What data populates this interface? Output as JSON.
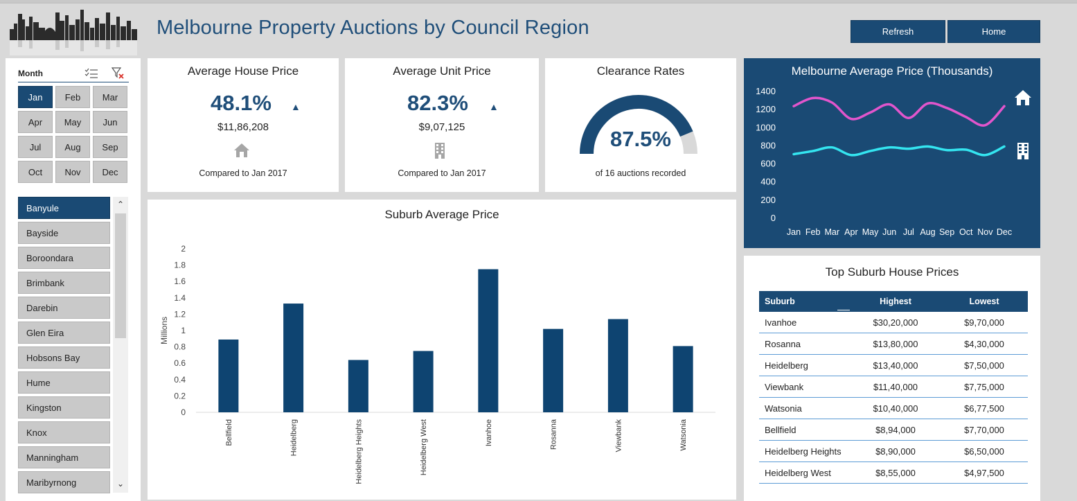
{
  "header": {
    "title": "Melbourne Property Auctions by Council Region",
    "refresh_label": "Refresh",
    "home_label": "Home"
  },
  "month_slicer": {
    "label": "Month",
    "months": [
      "Jan",
      "Feb",
      "Mar",
      "Apr",
      "May",
      "Jun",
      "Jul",
      "Aug",
      "Sep",
      "Oct",
      "Nov",
      "Dec"
    ],
    "selected": "Jan"
  },
  "council_slicer": {
    "items": [
      "Banyule",
      "Bayside",
      "Boroondara",
      "Brimbank",
      "Darebin",
      "Glen Eira",
      "Hobsons Bay",
      "Hume",
      "Kingston",
      "Knox",
      "Manningham",
      "Maribyrnong"
    ],
    "selected": "Banyule"
  },
  "kpi": {
    "house": {
      "title": "Average House Price",
      "pct": "48.1%",
      "arrow": "▲",
      "amount": "$11,86,208",
      "compare": "Compared to Jan 2017",
      "icon": "house-icon"
    },
    "unit": {
      "title": "Average Unit Price",
      "pct": "82.3%",
      "arrow": "▲",
      "amount": "$9,07,125",
      "compare": "Compared to Jan 2017",
      "icon": "building-icon"
    },
    "clearance": {
      "title": "Clearance Rates",
      "pct": "87.5%",
      "rate": 0.875,
      "caption": "of 16 auctions recorded"
    }
  },
  "colors": {
    "navy": "#1a4a74",
    "bar": "#0e4471",
    "house_line": "#e255cc",
    "unit_line": "#34e5f0",
    "gauge_rest": "#d9d9d9",
    "table_rule": "#5b9bd5"
  },
  "chart_data": [
    {
      "type": "bar",
      "title": "Suburb Average Price",
      "ylabel": "Millions",
      "xlabel": "",
      "ylim": [
        0,
        2
      ],
      "yticks": [
        "0",
        "0.2",
        "0.4",
        "0.6",
        "0.8",
        "1",
        "1.2",
        "1.4",
        "1.6",
        "1.8",
        "2"
      ],
      "categories": [
        "Bellfield",
        "Heidelberg",
        "Heidelberg Heights",
        "Heidelberg West",
        "Ivanhoe",
        "Rosanna",
        "Viewbank",
        "Watsonia"
      ],
      "values": [
        0.89,
        1.33,
        0.64,
        0.75,
        1.75,
        1.02,
        1.14,
        0.81
      ]
    },
    {
      "type": "line",
      "title": "Melbourne Average Price (Thousands)",
      "ylim": [
        0,
        1400
      ],
      "yticks": [
        "0",
        "200",
        "400",
        "600",
        "800",
        "1000",
        "1200",
        "1400"
      ],
      "categories": [
        "Jan",
        "Feb",
        "Mar",
        "Apr",
        "May",
        "Jun",
        "Jul",
        "Aug",
        "Sep",
        "Oct",
        "Nov",
        "Dec"
      ],
      "series": [
        {
          "name": "House",
          "icon": "house-icon",
          "values": [
            1230,
            1320,
            1270,
            1090,
            1160,
            1250,
            1100,
            1260,
            1210,
            1110,
            1020,
            1230
          ]
        },
        {
          "name": "Unit",
          "icon": "building-icon",
          "values": [
            700,
            735,
            775,
            690,
            735,
            775,
            760,
            785,
            745,
            750,
            690,
            785
          ]
        }
      ]
    }
  ],
  "top_suburbs": {
    "title": "Top Suburb House Prices",
    "headers": [
      "Suburb",
      "Highest",
      "Lowest"
    ],
    "rows": [
      [
        "Ivanhoe",
        "$30,20,000",
        "$9,70,000"
      ],
      [
        "Rosanna",
        "$13,80,000",
        "$4,30,000"
      ],
      [
        "Heidelberg",
        "$13,40,000",
        "$7,50,000"
      ],
      [
        "Viewbank",
        "$11,40,000",
        "$7,75,000"
      ],
      [
        "Watsonia",
        "$10,40,000",
        "$6,77,500"
      ],
      [
        "Bellfield",
        "$8,94,000",
        "$7,70,000"
      ],
      [
        "Heidelberg Heights",
        "$8,90,000",
        "$6,50,000"
      ],
      [
        "Heidelberg West",
        "$8,55,000",
        "$4,97,500"
      ]
    ]
  }
}
